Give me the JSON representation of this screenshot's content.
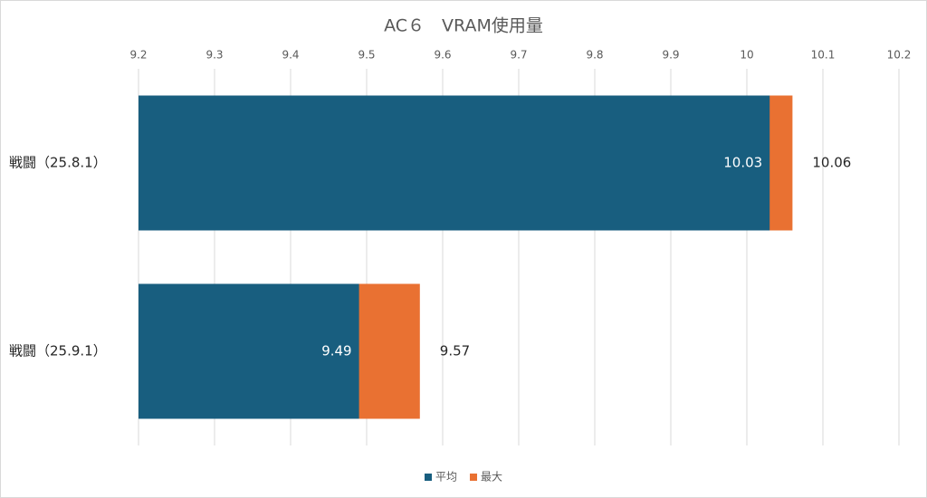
{
  "chart_data": {
    "type": "bar",
    "orientation": "horizontal",
    "overlap": true,
    "title": "AC６　VRAM使用量",
    "categories": [
      "戦闘（25.8.1）",
      "戦闘（25.9.1）"
    ],
    "series": [
      {
        "name": "平均",
        "color": "#185e7f",
        "values": [
          10.03,
          9.49
        ],
        "label_color": "#ffffff"
      },
      {
        "name": "最大",
        "color": "#e97132",
        "values": [
          10.06,
          9.57
        ],
        "label_color": "#262626"
      }
    ],
    "xlim": [
      9.2,
      10.2
    ],
    "xticks": [
      9.2,
      9.3,
      9.4,
      9.5,
      9.6,
      9.7,
      9.8,
      9.9,
      10,
      10.1,
      10.2
    ],
    "grid": true,
    "legend": "bottom"
  }
}
